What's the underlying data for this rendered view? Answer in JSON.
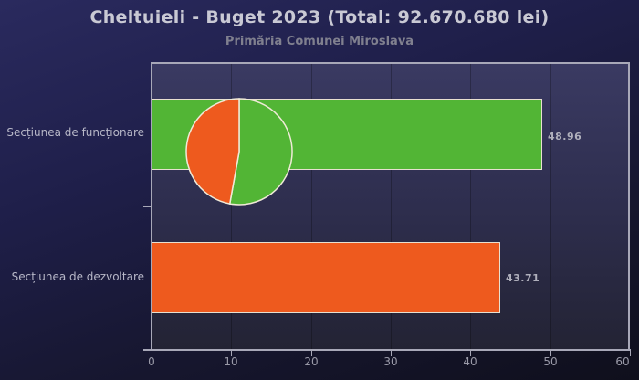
{
  "chart_data": {
    "type": "bar",
    "orientation": "horizontal",
    "title": "Cheltuieli - Buget 2023 (Total: 92.670.680 lei)",
    "subtitle": "Primăria Comunei Miroslava",
    "categories": [
      "Secțiunea de funcționare",
      "Secțiunea de dezvoltare"
    ],
    "values": [
      48.96,
      43.71
    ],
    "value_labels": [
      "48.96",
      "43.71"
    ],
    "colors": [
      "#52b535",
      "#ee5a1e"
    ],
    "xlabel": "",
    "ylabel": "",
    "xlim": [
      0,
      60
    ],
    "xticks": [
      "0",
      "10",
      "20",
      "30",
      "40",
      "50",
      "60"
    ],
    "grid": true,
    "legend": null,
    "inset_pie": {
      "slices": [
        {
          "label": "Secțiunea de funcționare",
          "value": 48.96,
          "color": "#52b535"
        },
        {
          "label": "Secțiunea de dezvoltare",
          "value": 43.71,
          "color": "#ee5a1e"
        }
      ]
    }
  },
  "header": {
    "title": "Cheltuieli - Buget 2023 (Total: 92.670.680 lei)",
    "subtitle": "Primăria Comunei Miroslava"
  },
  "axis": {
    "x_ticks": [
      "0",
      "10",
      "20",
      "30",
      "40",
      "50",
      "60"
    ],
    "y_labels": [
      "Secțiunea de funcționare",
      "Secțiunea de dezvoltare"
    ]
  },
  "bars": [
    {
      "label": "Secțiunea de funcționare",
      "value_label": "48.96",
      "color": "#52b535"
    },
    {
      "label": "Secțiunea de dezvoltare",
      "value_label": "43.71",
      "color": "#ee5a1e"
    }
  ]
}
